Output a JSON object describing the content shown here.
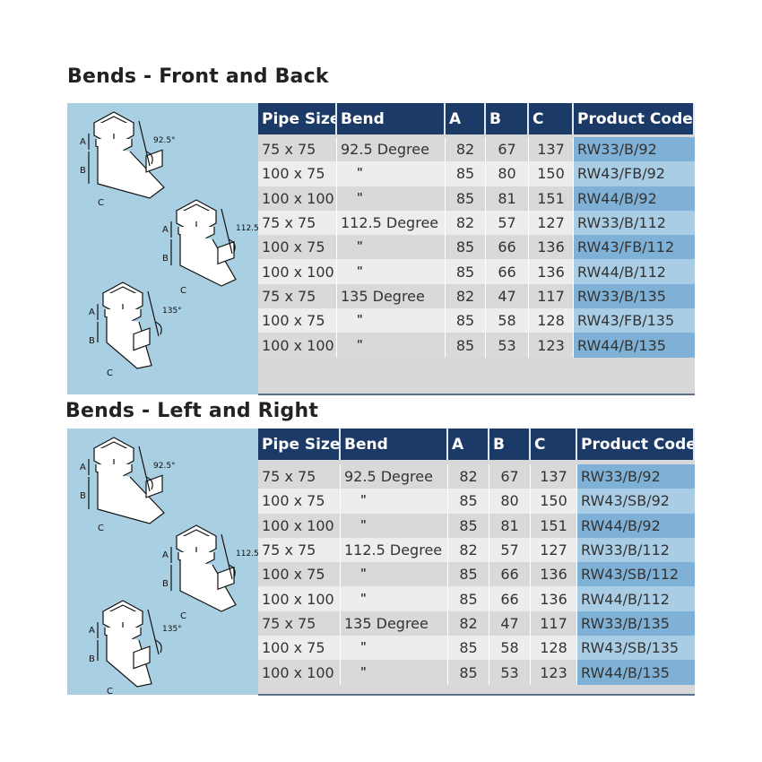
{
  "sections": [
    {
      "title": "Bends - Front and Back",
      "headers": [
        "Pipe Size",
        "Bend",
        "A",
        "B",
        "C",
        "Product Code"
      ],
      "rows": [
        [
          "75 x 75",
          "92.5 Degree",
          "82",
          "67",
          "137",
          "RW33/B/92"
        ],
        [
          "100 x 75",
          "\"",
          "85",
          "80",
          "150",
          "RW43/FB/92"
        ],
        [
          "100 x 100",
          "\"",
          "85",
          "81",
          "151",
          "RW44/B/92"
        ],
        [
          "75 x 75",
          "112.5 Degree",
          "82",
          "57",
          "127",
          "RW33/B/112"
        ],
        [
          "100 x 75",
          "\"",
          "85",
          "66",
          "136",
          "RW43/FB/112"
        ],
        [
          "100 x 100",
          "\"",
          "85",
          "66",
          "136",
          "RW44/B/112"
        ],
        [
          "75 x 75",
          "135 Degree",
          "82",
          "47",
          "117",
          "RW33/B/135"
        ],
        [
          "100 x 75",
          "\"",
          "85",
          "58",
          "128",
          "RW43/FB/135"
        ],
        [
          "100 x 100",
          "\"",
          "85",
          "53",
          "123",
          "RW44/B/135"
        ]
      ],
      "diagram_labels": {
        "a": "A",
        "b": "B",
        "c": "C",
        "angles": [
          "92.5°",
          "112.5°",
          "135°"
        ]
      }
    },
    {
      "title": "Bends - Left and Right",
      "headers": [
        "Pipe Size",
        "Bend",
        "A",
        "B",
        "C",
        "Product Code"
      ],
      "rows": [
        [
          "75 x 75",
          "92.5 Degree",
          "82",
          "67",
          "137",
          "RW33/B/92"
        ],
        [
          "100 x 75",
          "\"",
          "85",
          "80",
          "150",
          "RW43/SB/92"
        ],
        [
          "100 x 100",
          "\"",
          "85",
          "81",
          "151",
          "RW44/B/92"
        ],
        [
          "75 x 75",
          "112.5 Degree",
          "82",
          "57",
          "127",
          "RW33/B/112"
        ],
        [
          "100 x 75",
          "\"",
          "85",
          "66",
          "136",
          "RW43/SB/112"
        ],
        [
          "100 x 100",
          "\"",
          "85",
          "66",
          "136",
          "RW44/B/112"
        ],
        [
          "75 x 75",
          "135 Degree",
          "82",
          "47",
          "117",
          "RW33/B/135"
        ],
        [
          "100 x 75",
          "\"",
          "85",
          "58",
          "128",
          "RW43/SB/135"
        ],
        [
          "100 x 100",
          "\"",
          "85",
          "53",
          "123",
          "RW44/B/135"
        ]
      ],
      "diagram_labels": {
        "a": "A",
        "b": "B",
        "c": "C",
        "angles": [
          "92.5°",
          "112.5°",
          "135°"
        ]
      }
    }
  ],
  "colors": {
    "header": "#1b3a68",
    "image_panel": "#a9cfe3",
    "code_dark": "#7fb1d6",
    "code_light": "#a9cde4"
  }
}
